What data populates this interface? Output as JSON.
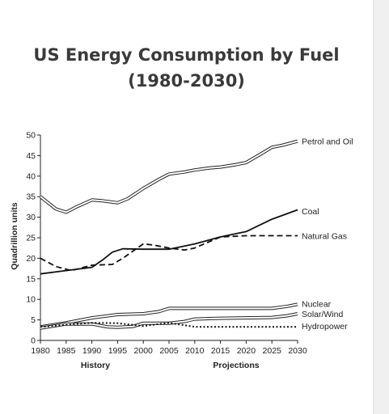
{
  "chart_data": {
    "type": "line",
    "title_line1": "US Energy Consumption by Fuel",
    "title_line2": "(1980-2030)",
    "ylabel": "Quadrillion units",
    "xlabel_left": "History",
    "xlabel_right": "Projections",
    "xlim": [
      1980,
      2030
    ],
    "ylim": [
      0,
      50
    ],
    "x_ticks": [
      1980,
      1985,
      1990,
      1995,
      2000,
      2005,
      2010,
      2015,
      2020,
      2025,
      2030
    ],
    "y_ticks": [
      0,
      5,
      10,
      15,
      20,
      25,
      30,
      35,
      40,
      45,
      50
    ],
    "grid": false,
    "series": [
      {
        "name": "Petrol and Oil",
        "style": "double",
        "label_y": 48.5,
        "points": [
          [
            1980,
            35
          ],
          [
            1983,
            32
          ],
          [
            1985,
            31.2
          ],
          [
            1987,
            32.5
          ],
          [
            1990,
            34.2
          ],
          [
            1992,
            34
          ],
          [
            1995,
            33.5
          ],
          [
            1997,
            34.5
          ],
          [
            2000,
            37
          ],
          [
            2003,
            39.2
          ],
          [
            2005,
            40.5
          ],
          [
            2008,
            41
          ],
          [
            2010,
            41.5
          ],
          [
            2013,
            42
          ],
          [
            2015,
            42.2
          ],
          [
            2018,
            42.8
          ],
          [
            2020,
            43.3
          ],
          [
            2023,
            45.5
          ],
          [
            2025,
            47
          ],
          [
            2027,
            47.5
          ],
          [
            2030,
            48.5
          ]
        ]
      },
      {
        "name": "Coal",
        "style": "solid",
        "label_y": 31.5,
        "points": [
          [
            1980,
            16.2
          ],
          [
            1985,
            17
          ],
          [
            1990,
            17.8
          ],
          [
            1992,
            19.5
          ],
          [
            1994,
            21.5
          ],
          [
            1996,
            22.3
          ],
          [
            2000,
            22.2
          ],
          [
            2005,
            22.2
          ],
          [
            2010,
            23.5
          ],
          [
            2015,
            25.2
          ],
          [
            2020,
            26.5
          ],
          [
            2025,
            29.5
          ],
          [
            2030,
            31.8
          ]
        ]
      },
      {
        "name": "Natural Gas",
        "style": "dashed",
        "label_y": 25.5,
        "points": [
          [
            1980,
            20
          ],
          [
            1983,
            18
          ],
          [
            1986,
            17
          ],
          [
            1990,
            18.3
          ],
          [
            1994,
            18.5
          ],
          [
            1996,
            20
          ],
          [
            2000,
            23.5
          ],
          [
            2002,
            23.2
          ],
          [
            2005,
            22.5
          ],
          [
            2008,
            22
          ],
          [
            2010,
            22.5
          ],
          [
            2015,
            25.2
          ],
          [
            2020,
            25.5
          ],
          [
            2025,
            25.5
          ],
          [
            2030,
            25.5
          ]
        ]
      },
      {
        "name": "Nuclear",
        "style": "double",
        "label_y": 9,
        "points": [
          [
            1980,
            3.3
          ],
          [
            1985,
            4.3
          ],
          [
            1990,
            5.5
          ],
          [
            1995,
            6.3
          ],
          [
            2000,
            6.5
          ],
          [
            2003,
            7
          ],
          [
            2005,
            7.8
          ],
          [
            2010,
            7.8
          ],
          [
            2015,
            7.8
          ],
          [
            2020,
            7.8
          ],
          [
            2025,
            7.8
          ],
          [
            2028,
            8.3
          ],
          [
            2030,
            8.8
          ]
        ]
      },
      {
        "name": "Solar/Wind",
        "style": "double",
        "label_y": 6.5,
        "points": [
          [
            1980,
            3
          ],
          [
            1985,
            4
          ],
          [
            1990,
            4
          ],
          [
            1993,
            3.3
          ],
          [
            1995,
            3.2
          ],
          [
            1998,
            3.4
          ],
          [
            2000,
            4.2
          ],
          [
            2005,
            4.2
          ],
          [
            2008,
            4.6
          ],
          [
            2010,
            5.2
          ],
          [
            2015,
            5.4
          ],
          [
            2020,
            5.5
          ],
          [
            2025,
            5.6
          ],
          [
            2028,
            6
          ],
          [
            2030,
            6.5
          ]
        ]
      },
      {
        "name": "Hydropower",
        "style": "dotted",
        "label_y": 3.5,
        "points": [
          [
            1980,
            3.3
          ],
          [
            1985,
            3.8
          ],
          [
            1990,
            4.3
          ],
          [
            1995,
            4.2
          ],
          [
            2000,
            3.5
          ],
          [
            2005,
            4.3
          ],
          [
            2010,
            3.3
          ],
          [
            2015,
            3.3
          ],
          [
            2020,
            3.3
          ],
          [
            2025,
            3.3
          ],
          [
            2030,
            3.3
          ]
        ]
      }
    ]
  }
}
